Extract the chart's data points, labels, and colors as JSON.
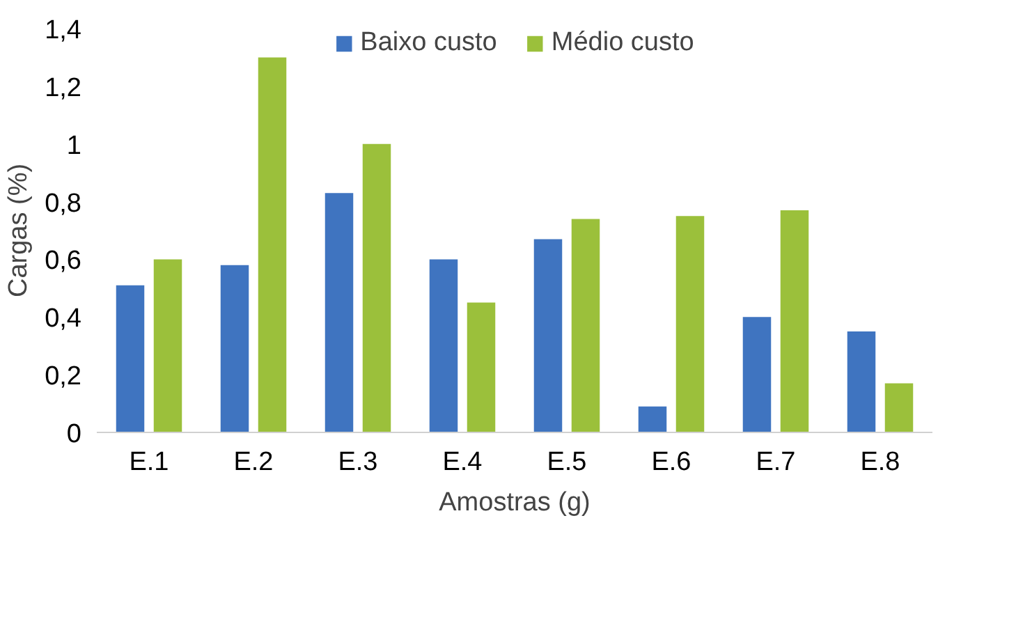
{
  "chart_data": {
    "type": "bar",
    "xlabel": "Amostras (g)",
    "ylabel": "Cargas (%)",
    "categories": [
      "E.1",
      "E.2",
      "E.3",
      "E.4",
      "E.5",
      "E.6",
      "E.7",
      "E.8"
    ],
    "series": [
      {
        "name": "Baixo custo",
        "color": "#3f74c0",
        "values": [
          0.51,
          0.58,
          0.83,
          0.6,
          0.67,
          0.09,
          0.4,
          0.35
        ]
      },
      {
        "name": "Médio custo",
        "color": "#9bc03b",
        "values": [
          0.6,
          1.3,
          1.0,
          0.45,
          0.74,
          0.75,
          0.77,
          0.17
        ]
      }
    ],
    "ylim": [
      0,
      1.4
    ],
    "yticks": [
      0,
      {
        "value": 0.2,
        "label": "0,2"
      },
      {
        "value": 0.4,
        "label": "0,4"
      },
      {
        "value": 0.6,
        "label": "0,6"
      },
      {
        "value": 0.8,
        "label": "0,8"
      },
      1,
      {
        "value": 1.2,
        "label": "1,2"
      },
      {
        "value": 1.4,
        "label": "1,4"
      }
    ],
    "grid": false,
    "legend": "top"
  }
}
